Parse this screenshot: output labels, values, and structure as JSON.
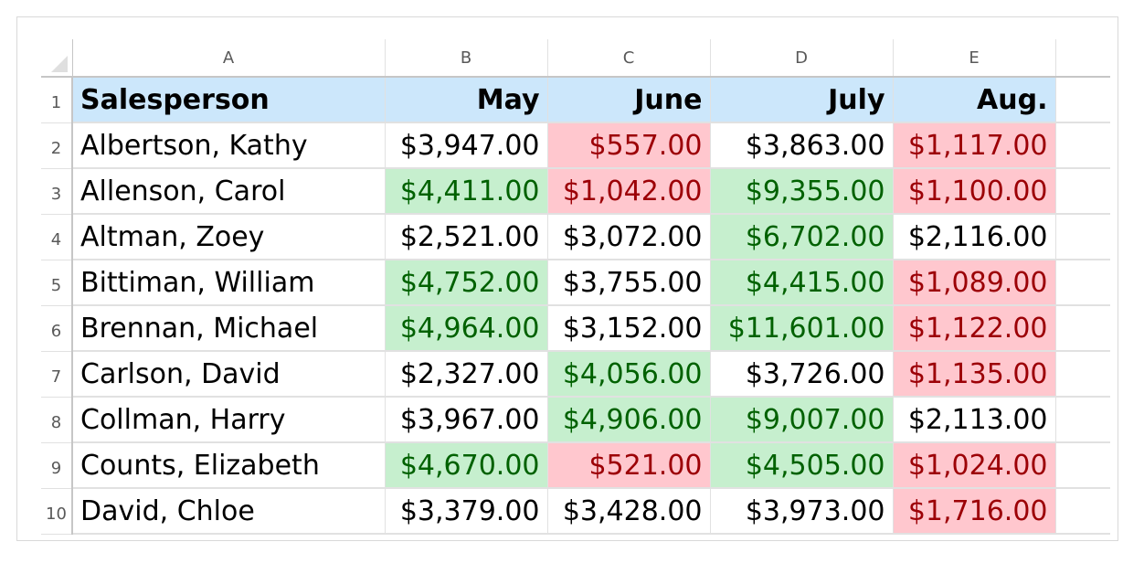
{
  "columns": [
    "A",
    "B",
    "C",
    "D",
    "E"
  ],
  "rows": [
    {
      "num": "1",
      "cells": [
        {
          "text": "Salesperson",
          "fmt": "hdr"
        },
        {
          "text": "May",
          "fmt": "hdr"
        },
        {
          "text": "June",
          "fmt": "hdr"
        },
        {
          "text": "July",
          "fmt": "hdr"
        },
        {
          "text": "Aug.",
          "fmt": "hdr"
        }
      ]
    },
    {
      "num": "2",
      "cells": [
        {
          "text": "Albertson, Kathy",
          "fmt": "none"
        },
        {
          "text": "$3,947.00",
          "fmt": "none"
        },
        {
          "text": "$557.00",
          "fmt": "bad"
        },
        {
          "text": "$3,863.00",
          "fmt": "none"
        },
        {
          "text": "$1,117.00",
          "fmt": "bad"
        }
      ]
    },
    {
      "num": "3",
      "cells": [
        {
          "text": "Allenson, Carol",
          "fmt": "none"
        },
        {
          "text": "$4,411.00",
          "fmt": "good"
        },
        {
          "text": "$1,042.00",
          "fmt": "bad"
        },
        {
          "text": "$9,355.00",
          "fmt": "good"
        },
        {
          "text": "$1,100.00",
          "fmt": "bad"
        }
      ]
    },
    {
      "num": "4",
      "cells": [
        {
          "text": "Altman, Zoey",
          "fmt": "none"
        },
        {
          "text": "$2,521.00",
          "fmt": "none"
        },
        {
          "text": "$3,072.00",
          "fmt": "none"
        },
        {
          "text": "$6,702.00",
          "fmt": "good"
        },
        {
          "text": "$2,116.00",
          "fmt": "none"
        }
      ]
    },
    {
      "num": "5",
      "cells": [
        {
          "text": "Bittiman, William",
          "fmt": "none"
        },
        {
          "text": "$4,752.00",
          "fmt": "good"
        },
        {
          "text": "$3,755.00",
          "fmt": "none"
        },
        {
          "text": "$4,415.00",
          "fmt": "good"
        },
        {
          "text": "$1,089.00",
          "fmt": "bad"
        }
      ]
    },
    {
      "num": "6",
      "cells": [
        {
          "text": "Brennan, Michael",
          "fmt": "none"
        },
        {
          "text": "$4,964.00",
          "fmt": "good"
        },
        {
          "text": "$3,152.00",
          "fmt": "none"
        },
        {
          "text": "$11,601.00",
          "fmt": "good"
        },
        {
          "text": "$1,122.00",
          "fmt": "bad"
        }
      ]
    },
    {
      "num": "7",
      "cells": [
        {
          "text": "Carlson, David",
          "fmt": "none"
        },
        {
          "text": "$2,327.00",
          "fmt": "none"
        },
        {
          "text": "$4,056.00",
          "fmt": "good"
        },
        {
          "text": "$3,726.00",
          "fmt": "none"
        },
        {
          "text": "$1,135.00",
          "fmt": "bad"
        }
      ]
    },
    {
      "num": "8",
      "cells": [
        {
          "text": "Collman, Harry",
          "fmt": "none"
        },
        {
          "text": "$3,967.00",
          "fmt": "none"
        },
        {
          "text": "$4,906.00",
          "fmt": "good"
        },
        {
          "text": "$9,007.00",
          "fmt": "good"
        },
        {
          "text": "$2,113.00",
          "fmt": "none"
        }
      ]
    },
    {
      "num": "9",
      "cells": [
        {
          "text": "Counts, Elizabeth",
          "fmt": "none"
        },
        {
          "text": "$4,670.00",
          "fmt": "good"
        },
        {
          "text": "$521.00",
          "fmt": "bad"
        },
        {
          "text": "$4,505.00",
          "fmt": "good"
        },
        {
          "text": "$1,024.00",
          "fmt": "bad"
        }
      ]
    },
    {
      "num": "10",
      "cells": [
        {
          "text": "David, Chloe",
          "fmt": "none"
        },
        {
          "text": "$3,379.00",
          "fmt": "none"
        },
        {
          "text": "$3,428.00",
          "fmt": "none"
        },
        {
          "text": "$3,973.00",
          "fmt": "none"
        },
        {
          "text": "$1,716.00",
          "fmt": "bad"
        }
      ]
    }
  ],
  "colors": {
    "header_fill": "#cce7fb",
    "good_fill": "#c6efce",
    "good_text": "#006100",
    "bad_fill": "#ffc7ce",
    "bad_text": "#9c0006"
  }
}
